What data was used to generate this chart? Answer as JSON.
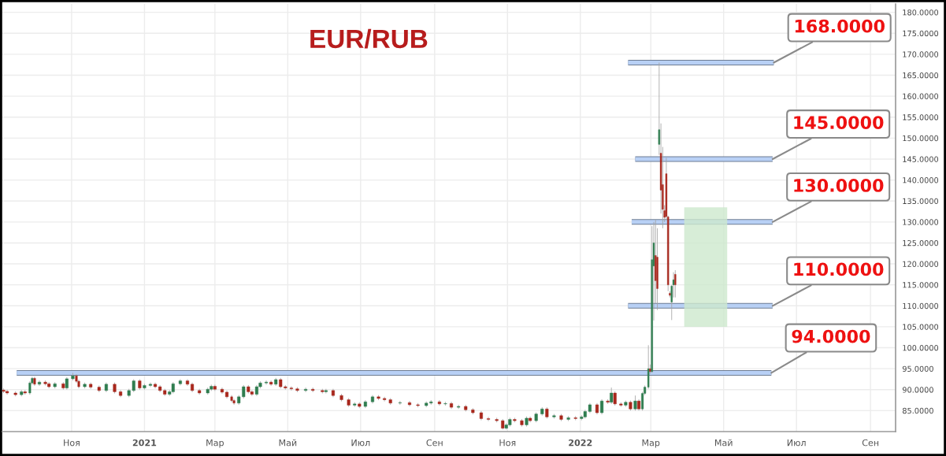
{
  "chart_data": {
    "type": "candlestick",
    "title": "EUR/RUB",
    "xlim": [
      "2020-09-04",
      "2022-09-22"
    ],
    "ylim": [
      80,
      182
    ],
    "xticks": [
      {
        "value": "2020-11-01",
        "label": "Ноя"
      },
      {
        "value": "2021-01-01",
        "label": "2021"
      },
      {
        "value": "2021-03-01",
        "label": "Мар"
      },
      {
        "value": "2021-05-01",
        "label": "Май"
      },
      {
        "value": "2021-07-01",
        "label": "Июл"
      },
      {
        "value": "2021-09-01",
        "label": "Сен"
      },
      {
        "value": "2021-11-01",
        "label": "Ноя"
      },
      {
        "value": "2022-01-01",
        "label": "2022"
      },
      {
        "value": "2022-03-01",
        "label": "Мар"
      },
      {
        "value": "2022-05-01",
        "label": "Май"
      },
      {
        "value": "2022-07-01",
        "label": "Июл"
      },
      {
        "value": "2022-09-01",
        "label": "Сен"
      }
    ],
    "yticks": [
      {
        "value": 85,
        "label": "85.0000"
      },
      {
        "value": 90,
        "label": "90.0000"
      },
      {
        "value": 95,
        "label": "95.0000"
      },
      {
        "value": 100,
        "label": "100.0000"
      },
      {
        "value": 105,
        "label": "105.0000"
      },
      {
        "value": 110,
        "label": "110.0000"
      },
      {
        "value": 115,
        "label": "115.0000"
      },
      {
        "value": 120,
        "label": "120.0000"
      },
      {
        "value": 125,
        "label": "125.0000"
      },
      {
        "value": 130,
        "label": "130.0000"
      },
      {
        "value": 135,
        "label": "135.0000"
      },
      {
        "value": 140,
        "label": "140.0000"
      },
      {
        "value": 145,
        "label": "145.0000"
      },
      {
        "value": 150,
        "label": "150.0000"
      },
      {
        "value": 155,
        "label": "155.0000"
      },
      {
        "value": 160,
        "label": "160.0000"
      },
      {
        "value": 165,
        "label": "165.0000"
      },
      {
        "value": 170,
        "label": "170.0000"
      },
      {
        "value": 175,
        "label": "175.0000"
      },
      {
        "value": 180,
        "label": "180.0000"
      }
    ],
    "grid": true,
    "series": [
      {
        "x": [
          "2020-09-05",
          "2020-09-08",
          "2020-09-15",
          "2020-09-20",
          "2020-09-23",
          "2020-09-27",
          "2020-09-29",
          "2020-10-01",
          "2020-10-05",
          "2020-10-10",
          "2020-10-13",
          "2020-10-18",
          "2020-10-25",
          "2020-10-28",
          "2020-11-02",
          "2020-11-05",
          "2020-11-07",
          "2020-11-12",
          "2020-11-17",
          "2020-11-24",
          "2020-11-30",
          "2020-12-07",
          "2020-12-12",
          "2020-12-19",
          "2020-12-23",
          "2020-12-28",
          "2021-01-01",
          "2021-01-06",
          "2021-01-10",
          "2021-01-14",
          "2021-01-18",
          "2021-01-22",
          "2021-01-25",
          "2021-01-31",
          "2021-02-06",
          "2021-02-10",
          "2021-02-16",
          "2021-02-23",
          "2021-02-26",
          "2021-03-01",
          "2021-03-07",
          "2021-03-11",
          "2021-03-15",
          "2021-03-17",
          "2021-03-21",
          "2021-03-25",
          "2021-03-29",
          "2021-04-01",
          "2021-04-05",
          "2021-04-08",
          "2021-04-13",
          "2021-04-17",
          "2021-04-21",
          "2021-04-25",
          "2021-04-29",
          "2021-05-04",
          "2021-05-09",
          "2021-05-16",
          "2021-05-22",
          "2021-05-30",
          "2021-06-02",
          "2021-06-08",
          "2021-06-15",
          "2021-06-21",
          "2021-06-26",
          "2021-06-30",
          "2021-07-05",
          "2021-07-11",
          "2021-07-16",
          "2021-07-21",
          "2021-07-26",
          "2021-08-03",
          "2021-08-11",
          "2021-08-18",
          "2021-08-25",
          "2021-08-29",
          "2021-09-05",
          "2021-09-10",
          "2021-09-15",
          "2021-09-21",
          "2021-09-27",
          "2021-10-03",
          "2021-10-10",
          "2021-10-16",
          "2021-10-23",
          "2021-10-28",
          "2021-10-31",
          "2021-11-03",
          "2021-11-07",
          "2021-11-13",
          "2021-11-17",
          "2021-11-20",
          "2021-11-25",
          "2021-11-30",
          "2021-12-04",
          "2021-12-10",
          "2021-12-16",
          "2021-12-22",
          "2021-12-28",
          "2022-01-02",
          "2022-01-05",
          "2022-01-09",
          "2022-01-15",
          "2022-01-19",
          "2022-01-24",
          "2022-01-27",
          "2022-01-30",
          "2022-02-04",
          "2022-02-08",
          "2022-02-12",
          "2022-02-16",
          "2022-02-19",
          "2022-02-22",
          "2022-02-24",
          "2022-02-27",
          "2022-02-28T12:00",
          "2022-03-02",
          "2022-03-03T12:00",
          "2022-03-05",
          "2022-03-06T12:00",
          "2022-03-08",
          "2022-03-09T12:00",
          "2022-03-11",
          "2022-03-12T12:00",
          "2022-03-14",
          "2022-03-15T12:00",
          "2022-03-17",
          "2022-03-18T12:00",
          "2022-03-20",
          "2022-03-21T12:00"
        ],
        "ohlc": [
          [
            89.9,
            90.3,
            89.2,
            89.6
          ],
          [
            89.6,
            90.0,
            88.8,
            89.2
          ],
          [
            89.2,
            89.6,
            88.4,
            88.8
          ],
          [
            88.8,
            89.9,
            88.4,
            89.5
          ],
          [
            89.5,
            89.9,
            88.8,
            89.2
          ],
          [
            89.2,
            92.0,
            88.8,
            91.6
          ],
          [
            91.6,
            93.1,
            91.2,
            92.7
          ],
          [
            92.7,
            93.1,
            90.9,
            91.3
          ],
          [
            91.3,
            92.2,
            90.9,
            91.8
          ],
          [
            91.8,
            92.2,
            91.0,
            91.4
          ],
          [
            91.4,
            91.8,
            90.3,
            90.7
          ],
          [
            90.7,
            91.8,
            90.3,
            91.4
          ],
          [
            91.4,
            91.8,
            90.0,
            90.4
          ],
          [
            90.4,
            93.0,
            90.0,
            92.6
          ],
          [
            92.6,
            94.0,
            92.2,
            93.3
          ],
          [
            93.3,
            93.7,
            91.6,
            92.0
          ],
          [
            92.0,
            92.4,
            90.3,
            90.7
          ],
          [
            90.7,
            91.7,
            90.3,
            91.3
          ],
          [
            91.3,
            91.7,
            90.2,
            90.6
          ],
          [
            90.6,
            91.0,
            89.4,
            89.8
          ],
          [
            89.8,
            91.7,
            89.4,
            91.3
          ],
          [
            91.3,
            91.7,
            89.1,
            89.5
          ],
          [
            89.5,
            89.9,
            88.2,
            88.6
          ],
          [
            88.6,
            90.2,
            88.2,
            89.8
          ],
          [
            89.8,
            92.5,
            89.4,
            92.1
          ],
          [
            92.1,
            92.5,
            90.0,
            90.4
          ],
          [
            90.4,
            91.4,
            90.0,
            91.0
          ],
          [
            91.0,
            91.7,
            90.6,
            91.3
          ],
          [
            91.3,
            91.7,
            90.3,
            90.7
          ],
          [
            90.7,
            91.1,
            89.4,
            89.8
          ],
          [
            89.8,
            90.2,
            88.5,
            88.9
          ],
          [
            88.9,
            89.9,
            88.5,
            89.5
          ],
          [
            89.5,
            91.8,
            89.1,
            91.4
          ],
          [
            91.4,
            92.5,
            91.0,
            92.1
          ],
          [
            92.1,
            92.5,
            90.9,
            91.3
          ],
          [
            91.3,
            91.7,
            89.4,
            89.8
          ],
          [
            89.8,
            90.2,
            88.8,
            89.2
          ],
          [
            89.2,
            90.5,
            88.8,
            90.1
          ],
          [
            90.1,
            91.2,
            89.7,
            90.8
          ],
          [
            90.8,
            91.2,
            89.7,
            90.1
          ],
          [
            90.1,
            90.5,
            89.0,
            89.4
          ],
          [
            89.4,
            89.8,
            87.9,
            88.3
          ],
          [
            88.3,
            88.7,
            87.0,
            87.4
          ],
          [
            87.4,
            87.8,
            86.4,
            86.8
          ],
          [
            86.8,
            88.7,
            86.4,
            88.3
          ],
          [
            88.3,
            91.1,
            87.9,
            90.7
          ],
          [
            90.7,
            91.1,
            89.1,
            89.5
          ],
          [
            89.5,
            89.9,
            88.5,
            88.9
          ],
          [
            88.9,
            91.1,
            88.5,
            90.7
          ],
          [
            90.7,
            92.0,
            90.3,
            91.6
          ],
          [
            91.6,
            92.2,
            91.2,
            91.8
          ],
          [
            91.8,
            92.2,
            90.9,
            91.3
          ],
          [
            91.3,
            92.8,
            90.9,
            92.4
          ],
          [
            92.4,
            92.8,
            90.3,
            90.7
          ],
          [
            90.7,
            91.1,
            90.0,
            90.4
          ],
          [
            90.4,
            90.8,
            89.8,
            90.2
          ],
          [
            90.2,
            90.6,
            89.4,
            89.8
          ],
          [
            89.8,
            90.5,
            89.4,
            90.1
          ],
          [
            90.1,
            90.5,
            89.4,
            89.8
          ],
          [
            89.8,
            90.2,
            89.1,
            89.5
          ],
          [
            89.5,
            90.2,
            89.1,
            89.8
          ],
          [
            89.8,
            90.2,
            88.2,
            88.6
          ],
          [
            88.6,
            89.0,
            87.2,
            87.6
          ],
          [
            87.6,
            88.0,
            85.9,
            86.3
          ],
          [
            86.3,
            87.0,
            85.9,
            86.6
          ],
          [
            86.6,
            87.0,
            85.6,
            86.0
          ],
          [
            86.0,
            87.5,
            85.6,
            87.1
          ],
          [
            87.1,
            88.7,
            86.7,
            88.3
          ],
          [
            88.3,
            88.7,
            87.5,
            87.9
          ],
          [
            87.9,
            88.3,
            87.2,
            87.6
          ],
          [
            87.6,
            88.0,
            86.4,
            86.8
          ],
          [
            86.8,
            87.3,
            86.4,
            86.9
          ],
          [
            86.9,
            87.3,
            86.0,
            86.4
          ],
          [
            86.4,
            86.8,
            85.8,
            86.2
          ],
          [
            86.2,
            87.2,
            85.8,
            86.8
          ],
          [
            86.8,
            87.5,
            86.4,
            87.1
          ],
          [
            87.1,
            87.5,
            86.2,
            86.6
          ],
          [
            86.6,
            87.1,
            86.2,
            86.7
          ],
          [
            86.7,
            87.1,
            85.4,
            85.8
          ],
          [
            85.8,
            86.4,
            85.4,
            86.0
          ],
          [
            86.0,
            86.4,
            84.8,
            85.2
          ],
          [
            85.2,
            85.6,
            84.1,
            84.5
          ],
          [
            84.5,
            84.9,
            82.7,
            83.1
          ],
          [
            83.1,
            83.5,
            82.5,
            82.9
          ],
          [
            82.9,
            83.3,
            82.2,
            82.6
          ],
          [
            82.6,
            83.0,
            80.5,
            80.8
          ],
          [
            80.8,
            82.0,
            80.5,
            81.6
          ],
          [
            81.6,
            83.3,
            81.2,
            82.9
          ],
          [
            82.9,
            83.3,
            82.2,
            82.6
          ],
          [
            82.6,
            83.0,
            81.2,
            81.6
          ],
          [
            81.6,
            83.6,
            81.2,
            83.2
          ],
          [
            83.2,
            83.6,
            82.2,
            82.6
          ],
          [
            82.6,
            84.6,
            82.2,
            84.2
          ],
          [
            84.2,
            85.8,
            83.8,
            85.4
          ],
          [
            85.4,
            85.8,
            83.1,
            83.5
          ],
          [
            83.5,
            84.2,
            83.1,
            83.8
          ],
          [
            83.8,
            84.2,
            82.5,
            82.9
          ],
          [
            82.9,
            83.7,
            82.5,
            83.3
          ],
          [
            83.3,
            83.7,
            82.7,
            83.1
          ],
          [
            83.1,
            83.9,
            82.7,
            83.5
          ],
          [
            83.5,
            85.2,
            83.1,
            84.8
          ],
          [
            84.8,
            86.8,
            84.4,
            86.4
          ],
          [
            86.4,
            86.8,
            84.1,
            84.5
          ],
          [
            84.5,
            87.7,
            84.1,
            87.3
          ],
          [
            87.3,
            87.7,
            86.6,
            87.0
          ],
          [
            87.0,
            90.5,
            86.6,
            89.2
          ],
          [
            89.2,
            89.6,
            86.2,
            86.6
          ],
          [
            86.6,
            87.0,
            85.9,
            86.3
          ],
          [
            86.3,
            87.4,
            85.9,
            87.0
          ],
          [
            87.0,
            87.4,
            85.0,
            85.4
          ],
          [
            85.4,
            88.6,
            85.0,
            87.3
          ],
          [
            87.3,
            87.7,
            85.0,
            85.4
          ],
          [
            85.4,
            89.5,
            85.0,
            89.1
          ],
          [
            89.1,
            91.0,
            88.7,
            90.6
          ],
          [
            90.6,
            100.6,
            90.2,
            95.0
          ],
          [
            95.0,
            96.0,
            93.8,
            94.3
          ],
          [
            94.3,
            129.0,
            94.0,
            121.0
          ],
          [
            119.5,
            130.0,
            106.5,
            125.0
          ],
          [
            122.0,
            130.5,
            110.5,
            116.0
          ],
          [
            121.6,
            128.5,
            109.0,
            114.1
          ],
          [
            148.5,
            168.0,
            146.0,
            152.0
          ],
          [
            146.4,
            153.5,
            132.0,
            137.6
          ],
          [
            138.9,
            147.9,
            128.5,
            133.0
          ],
          [
            132.7,
            134.0,
            130.0,
            131.1
          ],
          [
            141.5,
            145.3,
            130.5,
            131.3
          ],
          [
            131.2,
            131.5,
            113.5,
            115.0
          ],
          [
            113.0,
            113.5,
            112.0,
            112.5
          ],
          [
            110.9,
            115.0,
            106.6,
            114.7
          ],
          [
            115.0,
            118.0,
            112.0,
            116.2
          ],
          [
            117.5,
            118.5,
            112.0,
            115.0
          ]
        ]
      },
      {
        "type": "line",
        "color": "#b8d0f5",
        "x": [
          "2022-02-10",
          "2022-06-12"
        ],
        "values": [
          168,
          168
        ]
      },
      {
        "type": "line",
        "color": "#b8d0f5",
        "x": [
          "2022-02-16",
          "2022-06-11"
        ],
        "values": [
          145,
          145
        ]
      },
      {
        "type": "line",
        "color": "#b8d0f5",
        "x": [
          "2022-02-13",
          "2022-06-11"
        ],
        "values": [
          130,
          130
        ]
      },
      {
        "type": "line",
        "color": "#b8d0f5",
        "x": [
          "2022-02-10",
          "2022-06-11"
        ],
        "values": [
          110,
          110
        ]
      },
      {
        "type": "line",
        "color": "#b8d0f5",
        "x": [
          "2020-09-16",
          "2022-06-10"
        ],
        "values": [
          94,
          94
        ]
      },
      {
        "type": "area",
        "color": "#cde8cd",
        "x": [
          "2022-03-29",
          "2022-05-04"
        ],
        "values": [
          null,
          null
        ],
        "lower": [
          105,
          105
        ],
        "upper": [
          133.5,
          133.5
        ]
      }
    ],
    "annotations": [
      {
        "text": "168.0000",
        "x": "2022-06-12",
        "y": 168
      },
      {
        "text": "145.0000",
        "x": "2022-06-11",
        "y": 145
      },
      {
        "text": "130.0000",
        "x": "2022-06-11",
        "y": 130
      },
      {
        "text": "110.0000",
        "x": "2022-06-11",
        "y": 110
      },
      {
        "text": "94.0000",
        "x": "2022-06-10",
        "y": 94
      }
    ]
  }
}
